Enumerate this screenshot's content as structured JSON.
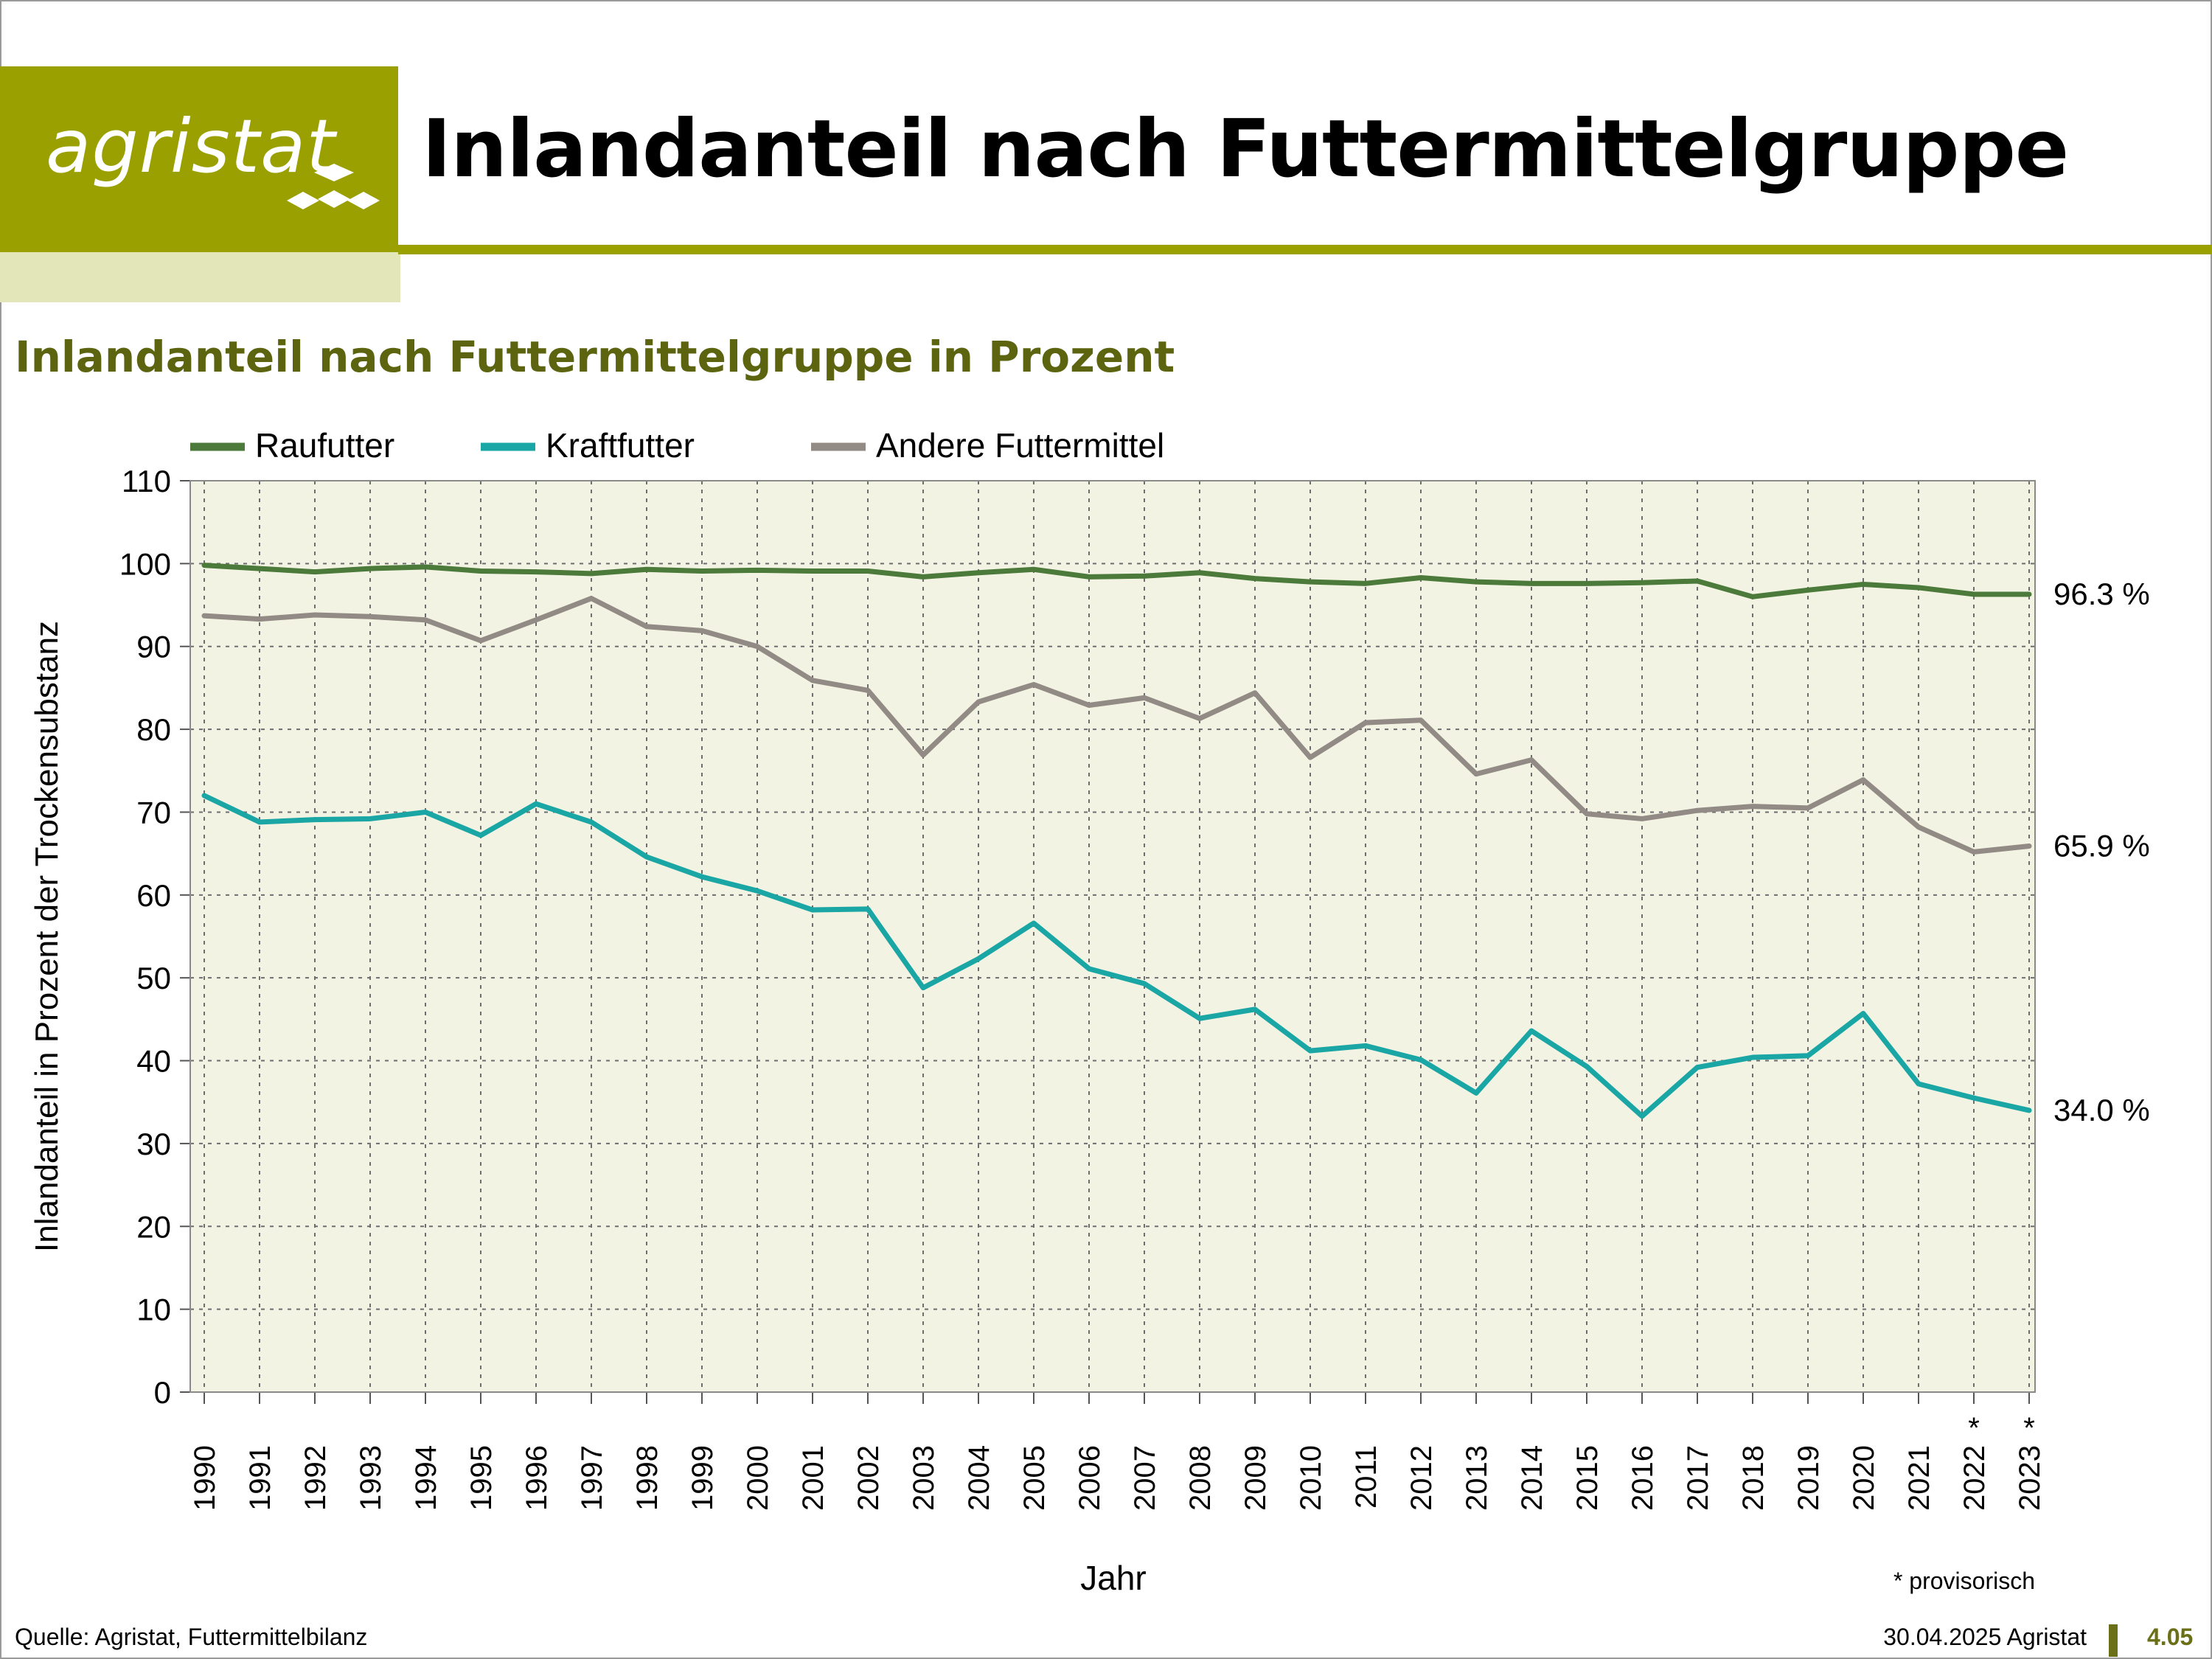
{
  "header": {
    "logo_text": "agristat",
    "title": "Inlandanteil nach Futtermittelgruppe"
  },
  "chart_title": "Inlandanteil nach Futtermittelgruppe in Prozent",
  "footer": {
    "source": "Quelle: Agristat, Futtermittelbilanz",
    "date": "30.04.2025 Agristat",
    "page_number": "4.05"
  },
  "colors": {
    "brand": "#9aa000",
    "raufutter": "#4c7a3a",
    "kraftfutter": "#1aa6a4",
    "andere": "#928a84",
    "plot_bg": "#f3f3e3"
  },
  "chart_data": {
    "type": "line",
    "xlabel": "Jahr",
    "ylabel": "Inlandanteil in Prozent der Trockensubstanz",
    "ylim": [
      0,
      110
    ],
    "yticks": [
      0,
      10,
      20,
      30,
      40,
      50,
      60,
      70,
      80,
      90,
      100,
      110
    ],
    "grid": true,
    "legend_position": "top-left",
    "x": [
      "1990",
      "1991",
      "1992",
      "1993",
      "1994",
      "1995",
      "1996",
      "1997",
      "1998",
      "1999",
      "2000",
      "2001",
      "2002",
      "2003",
      "2004",
      "2005",
      "2006",
      "2007",
      "2008",
      "2009",
      "2010",
      "2011",
      "2012",
      "2013",
      "2014",
      "2015",
      "2016",
      "2017",
      "2018",
      "2019",
      "2020",
      "2021",
      "2022",
      "2023"
    ],
    "provisional_years": [
      "2022",
      "2023"
    ],
    "provisional_marker": "*",
    "provisional_note": "* provisorisch",
    "series": [
      {
        "name": "Raufutter",
        "color_key": "raufutter",
        "end_label": "96.3 %",
        "values": [
          99.8,
          99.4,
          99.0,
          99.4,
          99.6,
          99.1,
          99.0,
          98.8,
          99.3,
          99.1,
          99.2,
          99.1,
          99.1,
          98.4,
          98.9,
          99.3,
          98.4,
          98.5,
          98.9,
          98.2,
          97.8,
          97.6,
          98.3,
          97.8,
          97.6,
          97.6,
          97.7,
          97.9,
          96.0,
          96.8,
          97.5,
          97.1,
          96.3,
          96.3
        ]
      },
      {
        "name": "Kraftfutter",
        "color_key": "kraftfutter",
        "end_label": "34.0 %",
        "values": [
          72.0,
          68.8,
          69.1,
          69.2,
          70.0,
          67.2,
          71.0,
          68.8,
          64.6,
          62.2,
          60.5,
          58.2,
          58.3,
          48.8,
          52.3,
          56.6,
          51.1,
          49.3,
          45.1,
          46.2,
          41.2,
          41.8,
          40.1,
          36.1,
          43.6,
          39.3,
          33.3,
          39.2,
          40.4,
          40.6,
          45.7,
          37.2,
          35.5,
          34.0
        ]
      },
      {
        "name": "Andere Futtermittel",
        "color_key": "andere",
        "end_label": "65.9 %",
        "values": [
          93.7,
          93.3,
          93.8,
          93.6,
          93.2,
          90.7,
          93.2,
          95.8,
          92.4,
          91.9,
          90.0,
          85.9,
          84.7,
          76.9,
          83.3,
          85.4,
          82.9,
          83.8,
          81.3,
          84.4,
          76.6,
          80.8,
          81.1,
          74.6,
          76.3,
          69.8,
          69.2,
          70.2,
          70.7,
          70.5,
          73.9,
          68.2,
          65.2,
          65.9
        ]
      }
    ]
  }
}
